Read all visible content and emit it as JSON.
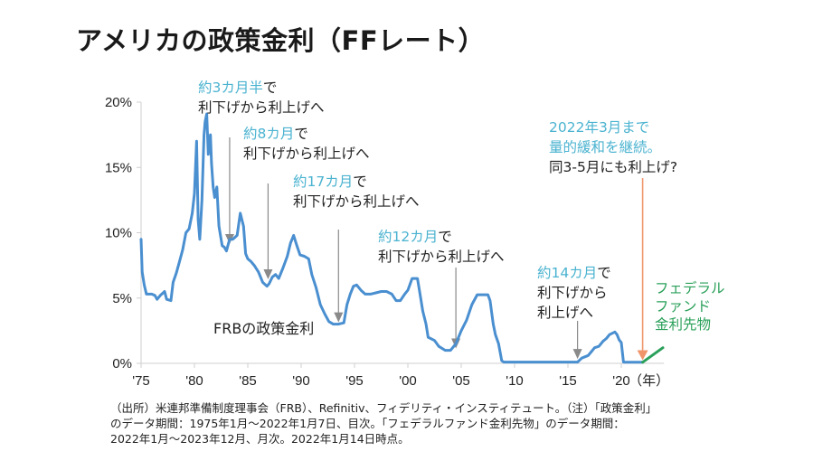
{
  "title": "アメリカの政策金利（FFレート）",
  "chart_data": {
    "type": "line",
    "title": "アメリカの政策金利（FFレート）",
    "xlabel": "（年）",
    "ylabel": "",
    "xlim": [
      1975,
      2024
    ],
    "ylim": [
      0,
      20
    ],
    "y_ticks": [
      "0%",
      "5%",
      "10%",
      "15%",
      "20%"
    ],
    "y_tick_values": [
      0,
      5,
      10,
      15,
      20
    ],
    "x_ticks": [
      "'75",
      "'80",
      "'85",
      "'90",
      "'95",
      "'00",
      "'05",
      "'10",
      "'15",
      "'20"
    ],
    "x_tick_values": [
      1975,
      1980,
      1985,
      1990,
      1995,
      2000,
      2005,
      2010,
      2015,
      2020
    ],
    "x_unit_label": "（年）",
    "grid": false,
    "series": [
      {
        "name": "FRBの政策金利",
        "color": "#4a8fd0",
        "x": [
          1975.0,
          1975.1,
          1975.3,
          1975.5,
          1976.0,
          1976.3,
          1976.5,
          1976.8,
          1977.2,
          1977.4,
          1977.8,
          1978.0,
          1978.3,
          1978.6,
          1978.9,
          1979.2,
          1979.5,
          1979.8,
          1980.0,
          1980.2,
          1980.35,
          1980.5,
          1980.7,
          1980.9,
          1981.0,
          1981.15,
          1981.3,
          1981.5,
          1981.6,
          1981.75,
          1981.9,
          1982.1,
          1982.3,
          1982.5,
          1982.6,
          1982.8,
          1983.0,
          1983.3,
          1983.6,
          1984.0,
          1984.3,
          1984.6,
          1984.8,
          1985.0,
          1985.3,
          1985.6,
          1986.0,
          1986.4,
          1986.8,
          1987.0,
          1987.3,
          1987.6,
          1987.9,
          1988.3,
          1988.7,
          1989.0,
          1989.3,
          1989.6,
          1989.9,
          1990.3,
          1990.7,
          1991.0,
          1991.4,
          1991.8,
          1992.2,
          1992.6,
          1993.0,
          1993.5,
          1994.0,
          1994.3,
          1994.6,
          1994.9,
          1995.2,
          1995.6,
          1996.0,
          1996.5,
          1997.0,
          1997.5,
          1998.0,
          1998.5,
          1998.9,
          1999.3,
          1999.7,
          2000.0,
          2000.4,
          2000.9,
          2001.1,
          2001.4,
          2001.7,
          2001.9,
          2002.5,
          2002.9,
          2003.5,
          2004.0,
          2004.5,
          2005.0,
          2005.5,
          2006.0,
          2006.5,
          2007.5,
          2007.7,
          2008.0,
          2008.2,
          2008.5,
          2008.8,
          2009.0,
          2015.9,
          2016.3,
          2016.9,
          2017.2,
          2017.5,
          2017.9,
          2018.3,
          2018.6,
          2018.9,
          2019.4,
          2019.6,
          2019.8,
          2020.0,
          2020.2,
          2020.3,
          2022.0
        ],
        "y": [
          9.5,
          7.0,
          6.0,
          5.3,
          5.3,
          5.2,
          4.9,
          5.2,
          5.5,
          4.9,
          4.8,
          6.2,
          6.9,
          7.8,
          8.7,
          10.0,
          10.3,
          11.5,
          13.0,
          17.0,
          11.0,
          9.5,
          12.5,
          17.5,
          18.5,
          19.1,
          16.0,
          17.5,
          15.3,
          13.5,
          12.7,
          13.5,
          10.5,
          9.5,
          9.0,
          8.9,
          8.6,
          9.5,
          9.5,
          9.8,
          11.5,
          10.5,
          8.4,
          8.0,
          7.8,
          7.5,
          7.0,
          6.2,
          5.9,
          6.1,
          6.6,
          6.8,
          6.5,
          7.3,
          8.2,
          9.2,
          9.8,
          9.0,
          8.3,
          8.2,
          8.0,
          6.8,
          5.8,
          4.5,
          3.8,
          3.2,
          3.0,
          3.0,
          3.1,
          4.5,
          5.3,
          5.9,
          6.0,
          5.6,
          5.3,
          5.3,
          5.4,
          5.5,
          5.5,
          5.3,
          4.8,
          4.8,
          5.3,
          5.6,
          6.5,
          6.5,
          5.5,
          4.0,
          3.0,
          2.0,
          1.75,
          1.3,
          1.0,
          1.0,
          1.5,
          2.5,
          3.3,
          4.5,
          5.25,
          5.25,
          4.8,
          3.0,
          2.2,
          1.5,
          0.2,
          0.1,
          0.1,
          0.4,
          0.6,
          0.9,
          1.2,
          1.3,
          1.7,
          1.9,
          2.2,
          2.4,
          2.2,
          1.8,
          1.6,
          0.1,
          0.08,
          0.08
        ]
      },
      {
        "name": "フェデラルファンド金利先物",
        "color": "#2aa05a",
        "x": [
          2022.0,
          2023.9
        ],
        "y": [
          0.08,
          1.2
        ]
      }
    ],
    "annotations": [
      {
        "highlight": "約3カ月半",
        "text1": "で",
        "text2": "利下げから利上げへ",
        "x": 1983.3,
        "y": 9.0
      },
      {
        "highlight": "約8カ月",
        "text1": "で",
        "text2": "利下げから利上げへ",
        "x": 1986.9,
        "y": 6.3
      },
      {
        "highlight": "約17カ月",
        "text1": "で",
        "text2": "利下げから利上げへ",
        "x": 1993.5,
        "y": 3.0
      },
      {
        "highlight": "約12カ月",
        "text1": "で",
        "text2": "利下げから利上げへ",
        "x": 2004.5,
        "y": 1.0
      },
      {
        "highlight": "約14カ月",
        "text1": "で",
        "text2": "利下げから",
        "text3": "利上げへ",
        "x": 2015.9,
        "y": 0.2
      },
      {
        "highlight1": "2022年3月まで",
        "highlight2": "量的緩和を継続。",
        "text": "同3-5月にも利上げ?",
        "x": 2022.0,
        "y": 0.1,
        "arrow_color": "#f0956a"
      }
    ]
  },
  "labels": {
    "frb_policy_rate": "FRBの政策金利",
    "futures_line1": "フェデラル",
    "futures_line2": "ファンド",
    "futures_line3": "金利先物"
  },
  "source": {
    "line1": "（出所）米連邦準備制度理事会（FRB）、Refinitiv、フィデリティ・インスティテュート。（注）「政策金利」",
    "line2": "のデータ期間：1975年1月～2022年1月7日、目次。「フェデラルファンド金利先物」のデータ期間：",
    "line3": "2022年1月～2023年12月、月次。2022年1月14日時点。"
  },
  "colors": {
    "series_blue": "#4a8fd0",
    "highlight_cyan": "#4bb3d0",
    "futures_green": "#2aa05a",
    "arrow_gray": "#8a8a8a",
    "arrow_orange": "#f0956a",
    "axis": "#cfcfcf"
  }
}
